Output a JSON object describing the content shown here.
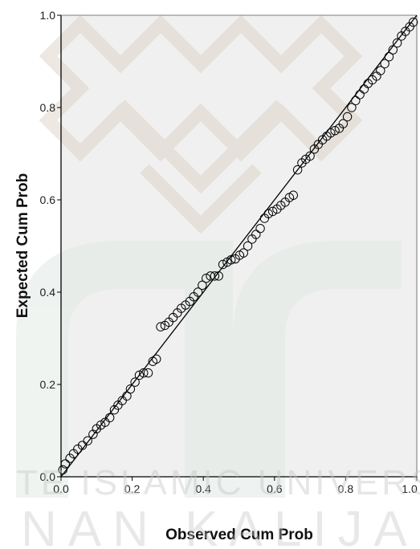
{
  "chart_data": {
    "type": "scatter",
    "title": "",
    "xlabel": "Observed Cum Prob",
    "ylabel": "Expected Cum Prob",
    "xlim": [
      0,
      1
    ],
    "ylim": [
      0,
      1
    ],
    "x_ticks": [
      "0.0",
      "0.2",
      "0.4",
      "0.6",
      "0.8",
      "1.0"
    ],
    "y_ticks": [
      "0.0",
      "0.2",
      "0.4",
      "0.6",
      "0.8",
      "1.0"
    ],
    "reference_line": {
      "from": [
        0,
        0
      ],
      "to": [
        1,
        1
      ]
    },
    "grid": false,
    "legend": "none",
    "colors": {
      "plot_background": "#f0f0f0",
      "marker_stroke": "#000000",
      "line": "#000000"
    },
    "points": [
      [
        0.005,
        0.015
      ],
      [
        0.012,
        0.028
      ],
      [
        0.025,
        0.04
      ],
      [
        0.035,
        0.05
      ],
      [
        0.047,
        0.06
      ],
      [
        0.06,
        0.068
      ],
      [
        0.075,
        0.078
      ],
      [
        0.09,
        0.092
      ],
      [
        0.1,
        0.104
      ],
      [
        0.112,
        0.112
      ],
      [
        0.124,
        0.118
      ],
      [
        0.137,
        0.128
      ],
      [
        0.15,
        0.145
      ],
      [
        0.16,
        0.155
      ],
      [
        0.172,
        0.165
      ],
      [
        0.185,
        0.175
      ],
      [
        0.195,
        0.19
      ],
      [
        0.208,
        0.205
      ],
      [
        0.22,
        0.22
      ],
      [
        0.232,
        0.225
      ],
      [
        0.245,
        0.225
      ],
      [
        0.258,
        0.25
      ],
      [
        0.268,
        0.255
      ],
      [
        0.28,
        0.325
      ],
      [
        0.292,
        0.328
      ],
      [
        0.303,
        0.335
      ],
      [
        0.315,
        0.345
      ],
      [
        0.327,
        0.355
      ],
      [
        0.338,
        0.365
      ],
      [
        0.35,
        0.372
      ],
      [
        0.362,
        0.38
      ],
      [
        0.373,
        0.39
      ],
      [
        0.385,
        0.4
      ],
      [
        0.397,
        0.415
      ],
      [
        0.408,
        0.43
      ],
      [
        0.42,
        0.435
      ],
      [
        0.432,
        0.435
      ],
      [
        0.443,
        0.435
      ],
      [
        0.455,
        0.46
      ],
      [
        0.467,
        0.465
      ],
      [
        0.478,
        0.47
      ],
      [
        0.49,
        0.472
      ],
      [
        0.502,
        0.48
      ],
      [
        0.513,
        0.485
      ],
      [
        0.525,
        0.5
      ],
      [
        0.537,
        0.515
      ],
      [
        0.548,
        0.525
      ],
      [
        0.56,
        0.538
      ],
      [
        0.572,
        0.56
      ],
      [
        0.583,
        0.57
      ],
      [
        0.595,
        0.575
      ],
      [
        0.607,
        0.58
      ],
      [
        0.618,
        0.588
      ],
      [
        0.63,
        0.595
      ],
      [
        0.642,
        0.605
      ],
      [
        0.653,
        0.61
      ],
      [
        0.665,
        0.665
      ],
      [
        0.677,
        0.68
      ],
      [
        0.688,
        0.688
      ],
      [
        0.7,
        0.695
      ],
      [
        0.712,
        0.71
      ],
      [
        0.723,
        0.72
      ],
      [
        0.735,
        0.73
      ],
      [
        0.747,
        0.738
      ],
      [
        0.758,
        0.745
      ],
      [
        0.77,
        0.75
      ],
      [
        0.782,
        0.755
      ],
      [
        0.793,
        0.765
      ],
      [
        0.805,
        0.78
      ],
      [
        0.817,
        0.8
      ],
      [
        0.828,
        0.815
      ],
      [
        0.84,
        0.828
      ],
      [
        0.852,
        0.84
      ],
      [
        0.863,
        0.852
      ],
      [
        0.875,
        0.86
      ],
      [
        0.887,
        0.868
      ],
      [
        0.898,
        0.88
      ],
      [
        0.91,
        0.895
      ],
      [
        0.922,
        0.91
      ],
      [
        0.933,
        0.925
      ],
      [
        0.945,
        0.94
      ],
      [
        0.957,
        0.955
      ],
      [
        0.968,
        0.965
      ],
      [
        0.98,
        0.975
      ],
      [
        0.99,
        0.985
      ]
    ]
  },
  "watermark": {
    "line1": "TE ISLAMIC UNIVERSITY",
    "line2": "NAN KALIJAGA",
    "logo": "mosque-arabesque-emblem"
  }
}
